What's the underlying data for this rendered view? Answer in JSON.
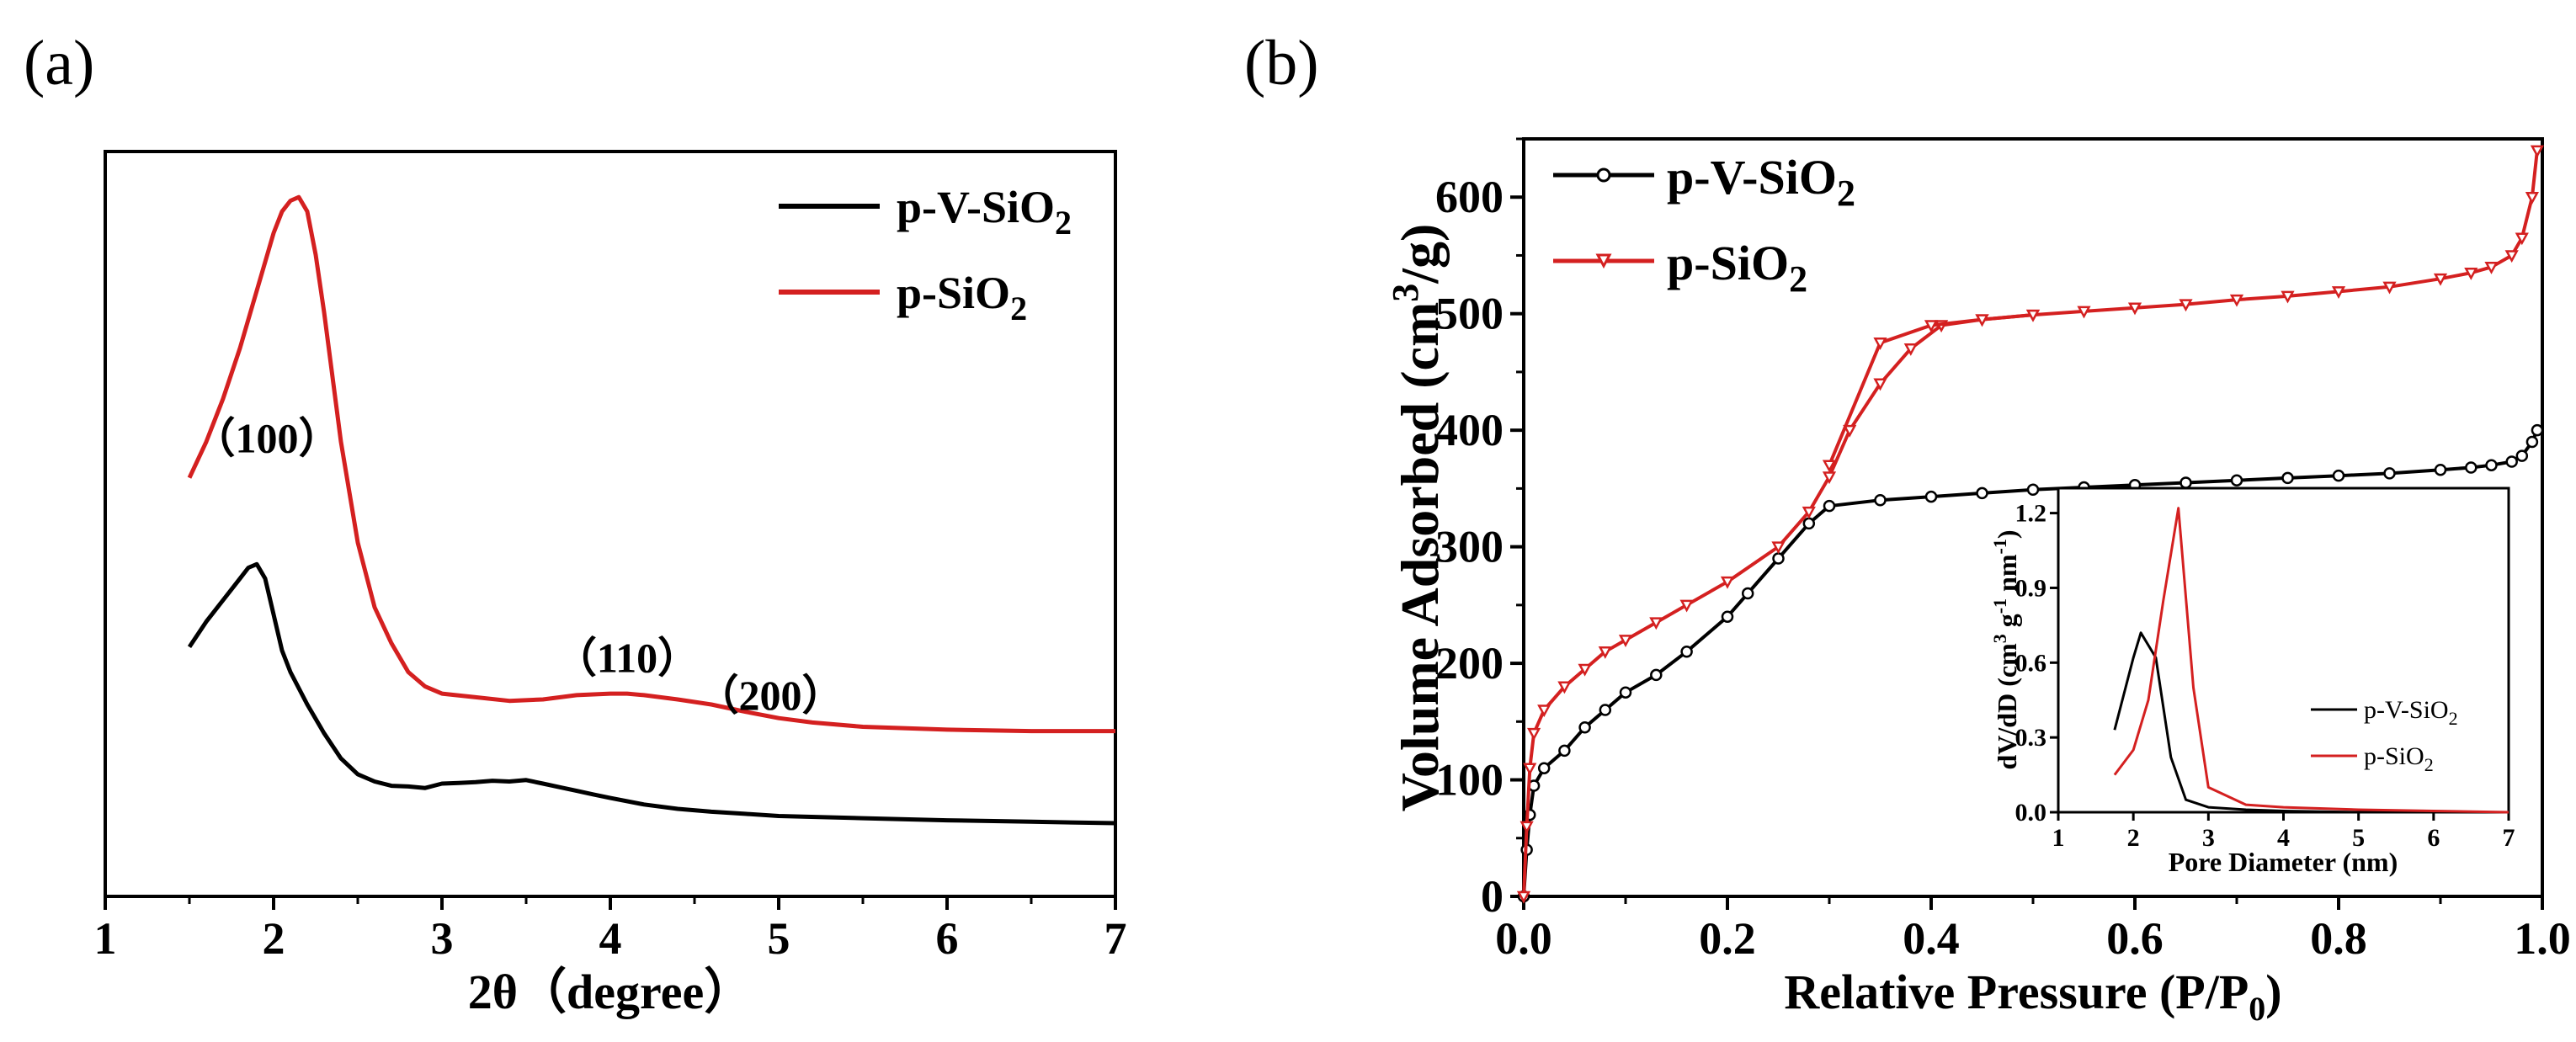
{
  "colors": {
    "series_black": "#000000",
    "series_red": "#d42020",
    "axis": "#000000"
  },
  "chart_data": [
    {
      "panel": "(a)",
      "type": "line",
      "xlabel": "2θ（degree）",
      "ylabel": "",
      "xlim": [
        1,
        7
      ],
      "ylim": [
        0,
        1.0
      ],
      "xticks": [
        "1",
        "2",
        "3",
        "4",
        "5",
        "6",
        "7"
      ],
      "legend": {
        "placement": "top-right",
        "entries": [
          "p-V-SiO2",
          "p-SiO2"
        ]
      },
      "annotations": [
        {
          "text": "（100）",
          "x": 1.96,
          "y": 0.605
        },
        {
          "text": "（110）",
          "x": 4.1,
          "y": 0.3
        },
        {
          "text": "（200）",
          "x": 4.95,
          "y": 0.248
        }
      ],
      "series": [
        {
          "name": "p-V-SiO2",
          "color": "#000000",
          "x": [
            1.5,
            1.6,
            1.7,
            1.8,
            1.85,
            1.9,
            1.95,
            2.0,
            2.05,
            2.1,
            2.2,
            2.3,
            2.4,
            2.5,
            2.6,
            2.7,
            2.8,
            2.9,
            3.0,
            3.1,
            3.2,
            3.3,
            3.4,
            3.5,
            3.6,
            3.7,
            3.8,
            3.9,
            4.0,
            4.2,
            4.4,
            4.6,
            4.8,
            5.0,
            5.5,
            6.0,
            6.5,
            7.0
          ],
          "values": [
            0.335,
            0.37,
            0.4,
            0.43,
            0.445,
            0.45,
            0.43,
            0.38,
            0.33,
            0.3,
            0.255,
            0.215,
            0.18,
            0.158,
            0.148,
            0.142,
            0.141,
            0.139,
            0.145,
            0.146,
            0.147,
            0.149,
            0.148,
            0.15,
            0.145,
            0.14,
            0.135,
            0.13,
            0.125,
            0.116,
            0.11,
            0.106,
            0.103,
            0.1,
            0.097,
            0.094,
            0.092,
            0.09
          ]
        },
        {
          "name": "p-SiO2",
          "color": "#d42020",
          "x": [
            1.5,
            1.6,
            1.7,
            1.8,
            1.9,
            2.0,
            2.05,
            2.1,
            2.15,
            2.2,
            2.25,
            2.3,
            2.4,
            2.5,
            2.6,
            2.7,
            2.8,
            2.9,
            3.0,
            3.2,
            3.4,
            3.6,
            3.8,
            4.0,
            4.1,
            4.2,
            4.4,
            4.6,
            4.8,
            5.0,
            5.2,
            5.5,
            6.0,
            6.5,
            7.0
          ],
          "values": [
            0.57,
            0.62,
            0.68,
            0.75,
            0.83,
            0.91,
            0.94,
            0.955,
            0.96,
            0.94,
            0.88,
            0.8,
            0.62,
            0.48,
            0.39,
            0.34,
            0.3,
            0.28,
            0.27,
            0.265,
            0.26,
            0.262,
            0.268,
            0.27,
            0.27,
            0.268,
            0.262,
            0.255,
            0.245,
            0.236,
            0.23,
            0.224,
            0.22,
            0.218,
            0.218
          ]
        }
      ]
    },
    {
      "panel": "(b)",
      "type": "line",
      "xlabel": "Relative Pressure (P/P",
      "xlabel_sub": "0",
      "xlabel_end": ")",
      "ylabel": "Volume Adsorbed (cm",
      "ylabel_sup": "3",
      "ylabel_end": "/g)",
      "xlim": [
        0,
        1.0
      ],
      "ylim": [
        0,
        650
      ],
      "xticks": [
        "0.0",
        "0.2",
        "0.4",
        "0.6",
        "0.8",
        "1.0"
      ],
      "yticks": [
        "0",
        "100",
        "200",
        "300",
        "400",
        "500",
        "600"
      ],
      "legend": {
        "placement": "top-left",
        "entries": [
          "p-V-SiO2",
          "p-SiO2"
        ]
      },
      "series": [
        {
          "name": "p-V-SiO2",
          "color": "#000000",
          "x": [
            0.0,
            0.003,
            0.006,
            0.01,
            0.02,
            0.04,
            0.06,
            0.08,
            0.1,
            0.13,
            0.16,
            0.2,
            0.22,
            0.25,
            0.28,
            0.3,
            0.35,
            0.4,
            0.45,
            0.5,
            0.55,
            0.6,
            0.65,
            0.7,
            0.75,
            0.8,
            0.85,
            0.9,
            0.93,
            0.95,
            0.97,
            0.98,
            0.99,
            0.995
          ],
          "values": [
            0,
            40,
            70,
            95,
            110,
            125,
            145,
            160,
            175,
            190,
            210,
            240,
            260,
            290,
            320,
            335,
            340,
            343,
            346,
            349,
            351,
            353,
            355,
            357,
            359,
            361,
            363,
            366,
            368,
            370,
            373,
            378,
            390,
            400
          ]
        },
        {
          "name": "p-SiO2",
          "color": "#d42020",
          "x": [
            0.0,
            0.003,
            0.006,
            0.01,
            0.02,
            0.04,
            0.06,
            0.08,
            0.1,
            0.13,
            0.16,
            0.2,
            0.25,
            0.28,
            0.3,
            0.32,
            0.35,
            0.38,
            0.41,
            0.45,
            0.5,
            0.55,
            0.6,
            0.65,
            0.7,
            0.75,
            0.8,
            0.85,
            0.9,
            0.93,
            0.95,
            0.97,
            0.98,
            0.99,
            0.995
          ],
          "values": [
            0,
            60,
            110,
            140,
            160,
            180,
            195,
            210,
            220,
            235,
            250,
            270,
            300,
            330,
            360,
            400,
            440,
            470,
            490,
            495,
            499,
            502,
            505,
            508,
            512,
            515,
            519,
            523,
            530,
            535,
            540,
            550,
            565,
            600,
            640
          ]
        },
        {
          "name": "p-SiO2 desorption",
          "color": "#d42020",
          "x": [
            0.3,
            0.35,
            0.4,
            0.45,
            0.5
          ],
          "values": [
            370,
            475,
            490,
            495,
            499
          ]
        }
      ]
    },
    {
      "panel": "(b) inset",
      "type": "line",
      "xlabel": "Pore Diameter (nm)",
      "ylabel": "dV/dD (cm",
      "ylabel_sup1": "3",
      "ylabel_mid": " g",
      "ylabel_sup2": "-1",
      "ylabel_mid2": " nm",
      "ylabel_sup3": "-1",
      "ylabel_end": ")",
      "xlim": [
        1,
        7
      ],
      "ylim": [
        0,
        1.3
      ],
      "xticks": [
        "1",
        "2",
        "3",
        "4",
        "5",
        "6",
        "7"
      ],
      "yticks": [
        "0.0",
        "0.3",
        "0.6",
        "0.9",
        "1.2"
      ],
      "legend": {
        "placement": "bottom-right",
        "entries": [
          "p-V-SiO2",
          "p-SiO2"
        ]
      },
      "series": [
        {
          "name": "p-V-SiO2",
          "color": "#000000",
          "x": [
            1.75,
            2.0,
            2.1,
            2.3,
            2.5,
            2.7,
            3.0,
            3.5,
            4.0,
            5.0,
            6.0,
            7.0
          ],
          "values": [
            0.33,
            0.62,
            0.72,
            0.62,
            0.22,
            0.05,
            0.02,
            0.01,
            0.005,
            0.0,
            0.0,
            0.0
          ]
        },
        {
          "name": "p-SiO2",
          "color": "#d42020",
          "x": [
            1.75,
            2.0,
            2.2,
            2.4,
            2.6,
            2.8,
            3.0,
            3.5,
            4.0,
            5.0,
            6.0,
            7.0
          ],
          "values": [
            0.15,
            0.25,
            0.45,
            0.85,
            1.22,
            0.5,
            0.1,
            0.03,
            0.02,
            0.01,
            0.005,
            0.0
          ]
        }
      ]
    }
  ]
}
